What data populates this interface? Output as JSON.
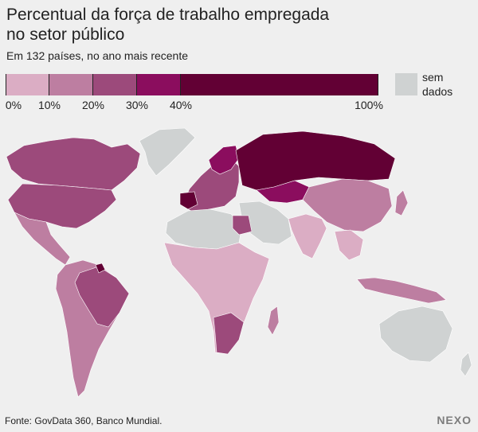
{
  "title": "Percentual da força de trabalho empregada no setor público",
  "subtitle": "Em 132 países, no ano mais recente",
  "legend": {
    "bins": [
      {
        "from": 0,
        "to": 10,
        "color": "#dbadc4"
      },
      {
        "from": 10,
        "to": 20,
        "color": "#bd7ea1"
      },
      {
        "from": 20,
        "to": 30,
        "color": "#9c4a7b"
      },
      {
        "from": 30,
        "to": 40,
        "color": "#8b0d5e"
      },
      {
        "from": 40,
        "to": 100,
        "color": "#620034"
      }
    ],
    "tick_labels": [
      "0%",
      "10%",
      "20%",
      "30%",
      "40%",
      "100%"
    ],
    "nodata_label": "sem dados",
    "nodata_color": "#cfd2d2"
  },
  "map_colors": {
    "land_nodata": "#cfd2d2",
    "border": "#ffffff"
  },
  "source": "Fonte: GovData 360, Banco Mundial.",
  "logo": "NEXO"
}
